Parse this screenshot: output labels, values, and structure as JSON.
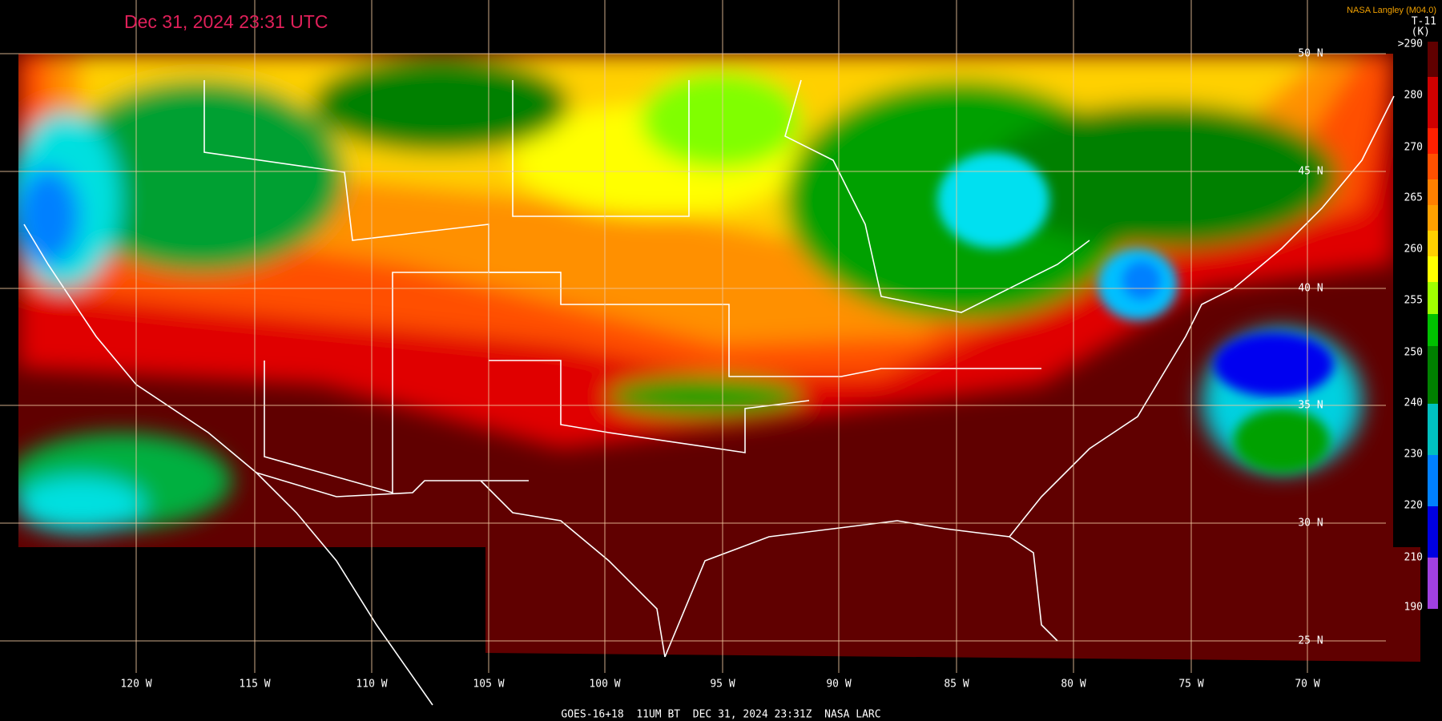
{
  "header": {
    "timestamp": "Dec 31, 2024 23:31 UTC",
    "source": "NASA Langley (M04.0)",
    "channel": "T-11",
    "unit": "(K)"
  },
  "colorbar": {
    "labels": [
      ">290",
      "280",
      "270",
      "265",
      "260",
      "255",
      "250",
      "240",
      "230",
      "220",
      "210",
      "190"
    ]
  },
  "latitude_labels": [
    "50 N",
    "45 N",
    "40 N",
    "35 N",
    "30 N",
    "25 N"
  ],
  "longitude_labels": [
    "120 W",
    "115 W",
    "110 W",
    "105 W",
    "100 W",
    "95 W",
    "90 W",
    "85 W",
    "80 W",
    "75 W",
    "70 W"
  ],
  "footer": "GOES-16+18  11UM BT  DEC 31, 2024 23:31Z  NASA LARC"
}
